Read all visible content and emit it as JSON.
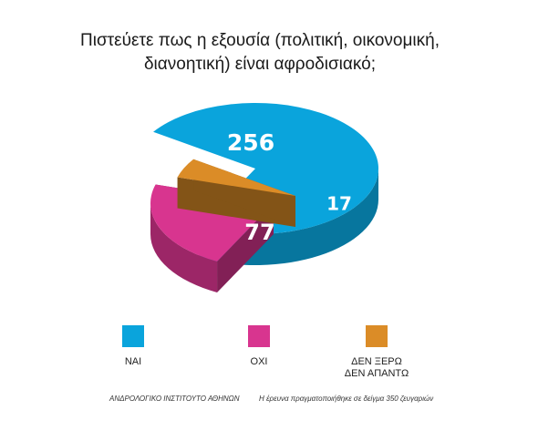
{
  "title": {
    "line1": "Πιστεύετε πως η εξουσία (πολιτική, οικονομική,",
    "line2": "διανοητική) είναι αφροδισιακό;"
  },
  "chart_data": {
    "type": "pie",
    "categories": [
      "ΝΑΙ",
      "ΟΧΙ",
      "ΔΕΝ ΞΕΡΩ ΔΕΝ ΑΠΑΝΤΩ"
    ],
    "values": [
      256,
      77,
      17
    ],
    "colors": [
      "#0aa4dc",
      "#d8358f",
      "#db8c27"
    ],
    "data_labels": [
      "256",
      "77",
      "17"
    ],
    "legend_position": "bottom"
  },
  "legend": {
    "yes": {
      "label": "ΝΑΙ",
      "color": "#0aa4dc"
    },
    "no": {
      "label": "ΟΧΙ",
      "color": "#d8358f"
    },
    "dontknow": {
      "label1": "ΔΕΝ ΞΕΡΩ",
      "label2": "ΔΕΝ ΑΠΑΝΤΩ",
      "color": "#db8c27"
    }
  },
  "footer": {
    "source": "ΑΝΔΡΟΛΟΓΙΚΟ ΙΝΣΤΙΤΟΥΤΟ ΑΘΗΝΩΝ",
    "note": "Η έρευνα πραγματοποιήθηκε σε δείγμα 350 ζευγαριών"
  }
}
